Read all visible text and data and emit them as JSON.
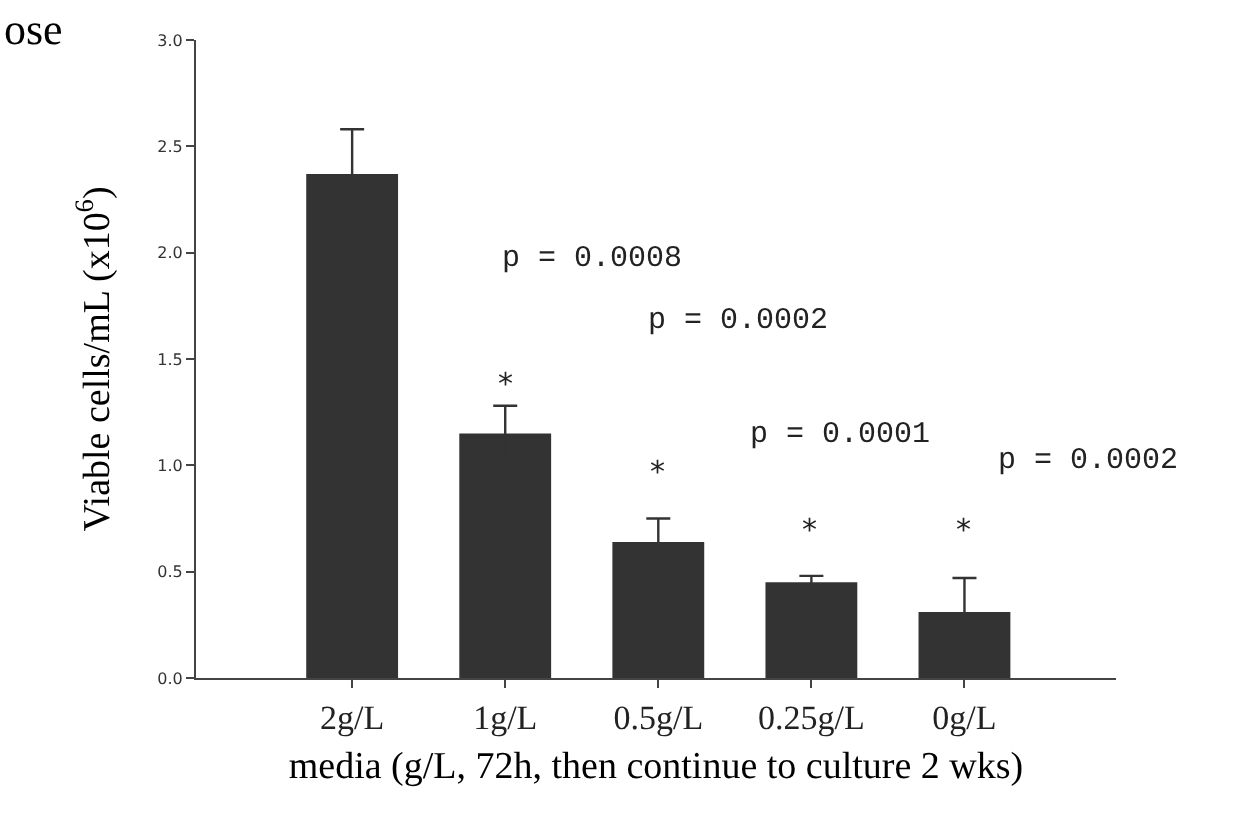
{
  "chart_data": {
    "type": "bar",
    "title": "ose",
    "ylabel": "Viable cells/mL (x10$^{6}$)",
    "xlabel": "media (g/L, 72h, then continue to culture 2 wks)",
    "categories": [
      "2g/L",
      "1g/L",
      "0.5g/L",
      "0.25g/L",
      "0g/L"
    ],
    "values": [
      2.37,
      1.15,
      0.64,
      0.45,
      0.31
    ],
    "errors": [
      0.21,
      0.13,
      0.11,
      0.03,
      0.16
    ],
    "color": "#333333",
    "ylim": [
      0,
      3.0
    ],
    "yticks": [
      {
        "value": 0,
        "label": "0.0"
      },
      {
        "value": 0.5,
        "label": "0.5"
      },
      {
        "value": 1.0,
        "label": "1.0"
      },
      {
        "value": 1.5,
        "label": "1.5"
      },
      {
        "value": 2.0,
        "label": "2.0"
      },
      {
        "value": 2.5,
        "label": "2.5"
      },
      {
        "value": 3.0,
        "label": "3.0"
      }
    ],
    "annotations": [
      "*",
      "*",
      "*",
      "*",
      "p = 0.0008",
      "p = 0.0002",
      "p = 0.0001",
      "p = 0.0002"
    ]
  }
}
